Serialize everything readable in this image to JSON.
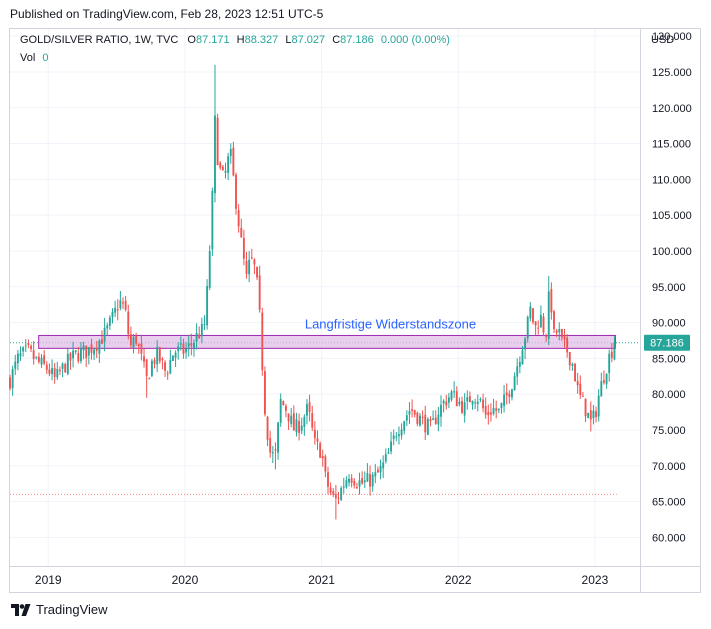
{
  "header": {
    "published": "Published on TradingView.com, Feb 28, 2023 12:51 UTC-5"
  },
  "legend": {
    "symbol": "GOLD/SILVER RATIO, 1W, TVC",
    "o_label": "O",
    "o_value": "87.171",
    "h_label": "H",
    "h_value": "88.327",
    "l_label": "L",
    "l_value": "87.027",
    "c_label": "C",
    "c_value": "87.186",
    "change": "0.000 (0.00%)",
    "vol_label": "Vol",
    "vol_value": "0"
  },
  "axis": {
    "currency": "USD"
  },
  "colors": {
    "up": "#26a69a",
    "down": "#ef5350",
    "zone_fill": "#e1bee7",
    "zone_border": "#9c27b0",
    "zone_text": "#2962ff",
    "grid": "#f0f3fa",
    "axis_text": "#131722"
  },
  "chart_data": {
    "type": "candlestick",
    "symbol": "GOLD/SILVER RATIO",
    "interval": "1W",
    "ylim": [
      56,
      131
    ],
    "y_ticks": [
      "60.000",
      "65.000",
      "70.000",
      "75.000",
      "80.000",
      "85.000",
      "90.000",
      "95.000",
      "100.000",
      "105.000",
      "110.000",
      "115.000",
      "120.000",
      "125.000",
      "130.000"
    ],
    "y_tick_values": [
      60,
      65,
      70,
      75,
      80,
      85,
      90,
      95,
      100,
      105,
      110,
      115,
      120,
      125,
      130
    ],
    "x_ticks": [
      "2019",
      "2020",
      "2021",
      "2022",
      "2023"
    ],
    "x_tick_values": [
      2019.0,
      2020.0,
      2021.0,
      2022.0,
      2023.0
    ],
    "xlim": [
      2018.72,
      2023.33
    ],
    "last_price": "87.186",
    "last_value": 87.186,
    "current_price_line": 87.186,
    "low_reference_line": 66.0,
    "grid": true,
    "annotation": {
      "label": "Langfristige Widerstandszone",
      "zone_low": 86.4,
      "zone_high": 88.2,
      "x_start": 2018.93,
      "x_end": 2023.15
    },
    "close_path": [
      [
        2018.72,
        82.0
      ],
      [
        2018.78,
        85.0
      ],
      [
        2018.85,
        86.0
      ],
      [
        2018.92,
        84.5
      ],
      [
        2019.0,
        83.5
      ],
      [
        2019.05,
        82.0
      ],
      [
        2019.12,
        84.0
      ],
      [
        2019.2,
        85.5
      ],
      [
        2019.28,
        86.0
      ],
      [
        2019.35,
        87.0
      ],
      [
        2019.42,
        88.5
      ],
      [
        2019.48,
        91.0
      ],
      [
        2019.52,
        93.0
      ],
      [
        2019.56,
        92.0
      ],
      [
        2019.6,
        86.5
      ],
      [
        2019.64,
        88.0
      ],
      [
        2019.68,
        85.0
      ],
      [
        2019.72,
        82.0
      ],
      [
        2019.76,
        84.5
      ],
      [
        2019.8,
        85.5
      ],
      [
        2019.86,
        83.0
      ],
      [
        2019.92,
        86.0
      ],
      [
        2020.0,
        86.0
      ],
      [
        2020.05,
        87.0
      ],
      [
        2020.1,
        88.5
      ],
      [
        2020.14,
        89.0
      ],
      [
        2020.17,
        96.0
      ],
      [
        2020.2,
        107.0
      ],
      [
        2020.22,
        118.0
      ],
      [
        2020.24,
        113.0
      ],
      [
        2020.27,
        110.0
      ],
      [
        2020.3,
        111.0
      ],
      [
        2020.33,
        114.0
      ],
      [
        2020.38,
        106.0
      ],
      [
        2020.42,
        100.0
      ],
      [
        2020.45,
        96.0
      ],
      [
        2020.48,
        99.0
      ],
      [
        2020.52,
        97.0
      ],
      [
        2020.55,
        90.0
      ],
      [
        2020.58,
        79.0
      ],
      [
        2020.62,
        72.0
      ],
      [
        2020.66,
        71.0
      ],
      [
        2020.7,
        79.0
      ],
      [
        2020.74,
        78.0
      ],
      [
        2020.8,
        75.0
      ],
      [
        2020.85,
        76.0
      ],
      [
        2020.9,
        78.0
      ],
      [
        2020.95,
        73.0
      ],
      [
        2021.0,
        72.0
      ],
      [
        2021.03,
        68.0
      ],
      [
        2021.07,
        66.0
      ],
      [
        2021.1,
        65.0
      ],
      [
        2021.15,
        67.0
      ],
      [
        2021.2,
        69.0
      ],
      [
        2021.25,
        68.0
      ],
      [
        2021.3,
        67.5
      ],
      [
        2021.35,
        68.0
      ],
      [
        2021.4,
        68.5
      ],
      [
        2021.45,
        70.0
      ],
      [
        2021.5,
        72.0
      ],
      [
        2021.55,
        75.0
      ],
      [
        2021.6,
        76.5
      ],
      [
        2021.65,
        78.0
      ],
      [
        2021.7,
        77.0
      ],
      [
        2021.75,
        76.0
      ],
      [
        2021.8,
        75.0
      ],
      [
        2021.85,
        77.5
      ],
      [
        2021.9,
        79.0
      ],
      [
        2021.95,
        80.0
      ],
      [
        2022.0,
        79.0
      ],
      [
        2022.05,
        78.0
      ],
      [
        2022.1,
        80.0
      ],
      [
        2022.15,
        79.5
      ],
      [
        2022.2,
        77.0
      ],
      [
        2022.25,
        78.0
      ],
      [
        2022.3,
        77.5
      ],
      [
        2022.35,
        79.5
      ],
      [
        2022.4,
        82.0
      ],
      [
        2022.43,
        84.0
      ],
      [
        2022.47,
        87.0
      ],
      [
        2022.5,
        89.0
      ],
      [
        2022.53,
        92.0
      ],
      [
        2022.56,
        89.0
      ],
      [
        2022.6,
        91.0
      ],
      [
        2022.64,
        88.0
      ],
      [
        2022.67,
        95.0
      ],
      [
        2022.7,
        88.0
      ],
      [
        2022.73,
        89.0
      ],
      [
        2022.76,
        87.0
      ],
      [
        2022.8,
        86.0
      ],
      [
        2022.84,
        84.0
      ],
      [
        2022.88,
        80.0
      ],
      [
        2022.93,
        78.0
      ],
      [
        2022.97,
        76.0
      ],
      [
        2023.0,
        77.0
      ],
      [
        2023.03,
        80.0
      ],
      [
        2023.07,
        83.0
      ],
      [
        2023.1,
        85.0
      ],
      [
        2023.13,
        86.5
      ],
      [
        2023.16,
        87.186
      ]
    ],
    "spikes": [
      {
        "x": 2019.72,
        "low": 79.5
      },
      {
        "x": 2020.22,
        "high": 126.0
      },
      {
        "x": 2020.66,
        "low": 69.5
      },
      {
        "x": 2021.1,
        "low": 62.5
      },
      {
        "x": 2022.67,
        "high": 96.5
      },
      {
        "x": 2022.97,
        "low": 74.8
      }
    ]
  },
  "footer": {
    "brand": "TradingView"
  }
}
